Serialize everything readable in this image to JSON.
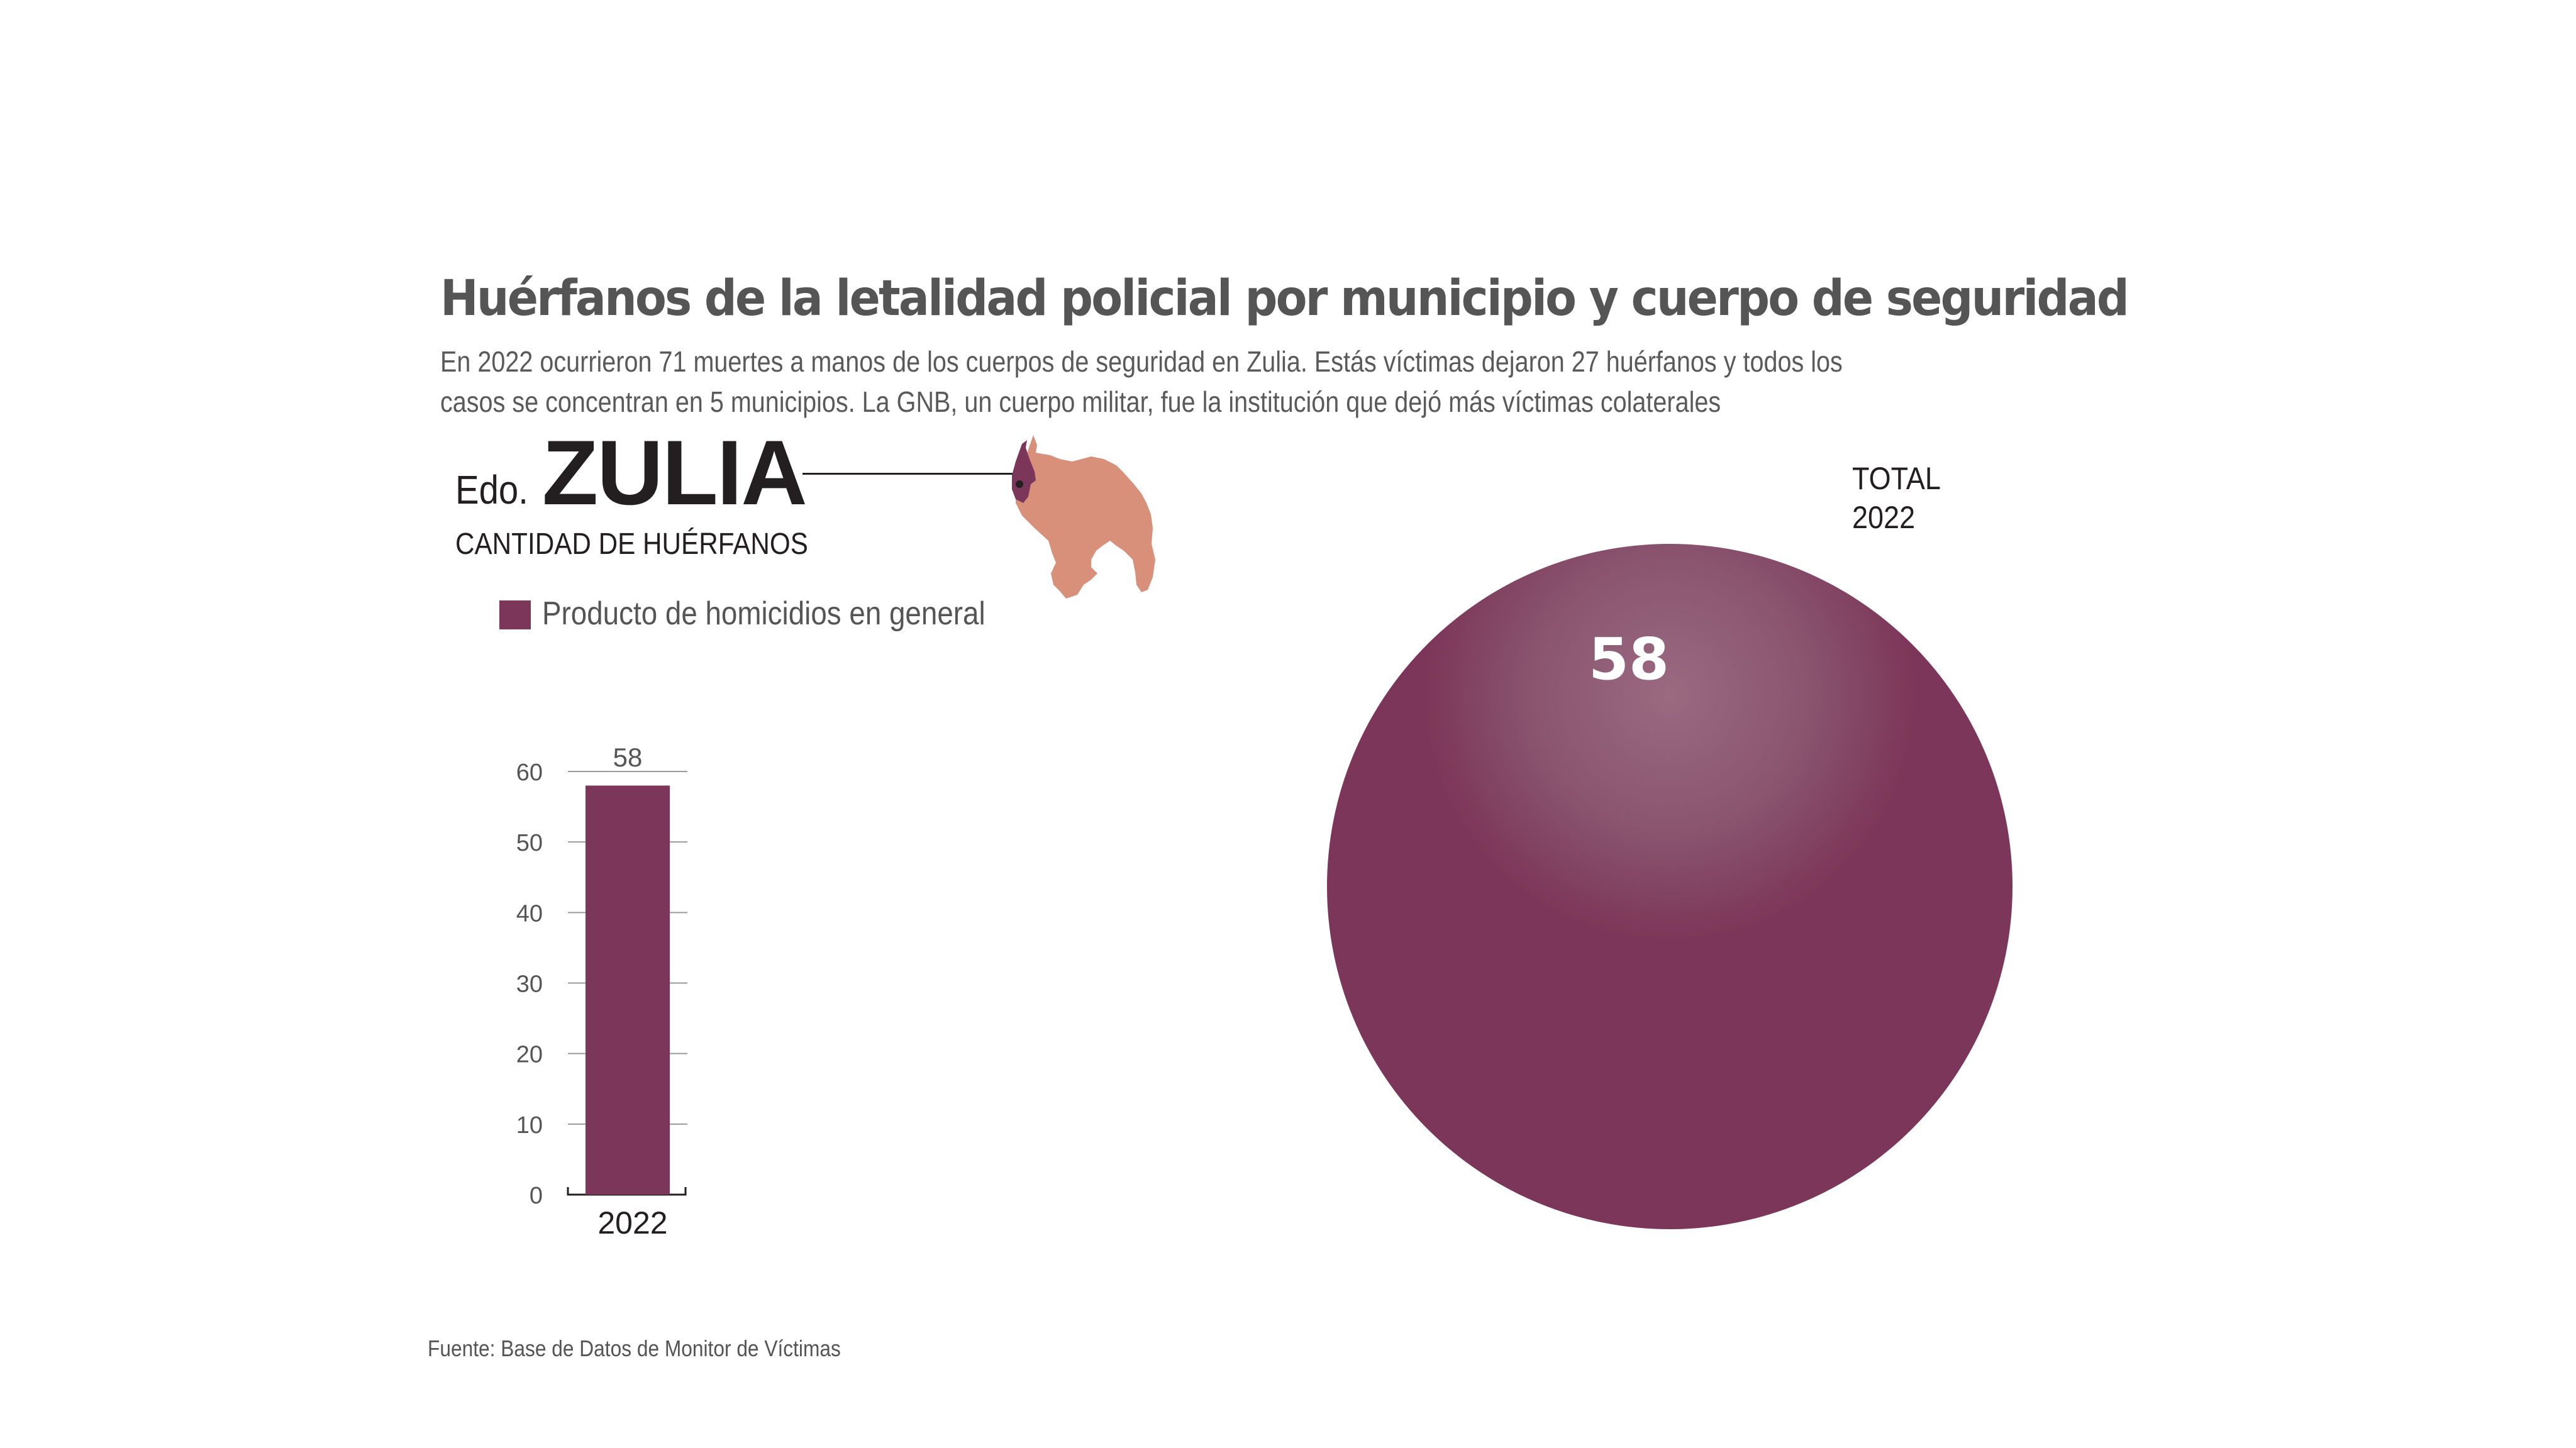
{
  "header": {
    "title": "Huérfanos de la letalidad policial por municipio y cuerpo de seguridad",
    "subtitle_lines": [
      "En 2022 ocurrieron 71 muertes a manos de los cuerpos de seguridad en Zulia. Estás víctimas dejaron 27 huérfanos y todos los",
      "casos se concentran en 5 municipios. La GNB, un cuerpo militar, fue la institución que dejó más víctimas colaterales"
    ]
  },
  "state": {
    "prefix": "Edo.",
    "name": "ZULIA",
    "measure": "CANTIDAD DE HUÉRFANOS"
  },
  "map": {
    "country_color": "#d9907a",
    "highlight_color": "#7c3659",
    "highlight_region": "Zulia"
  },
  "legend": {
    "items": [
      {
        "label": "Producto de homicidios en general",
        "color": "#7c3659"
      }
    ]
  },
  "total": {
    "line1": "TOTAL",
    "line2": "2022"
  },
  "colors": {
    "accent": "#7c3659",
    "text_dark": "#231f20",
    "text_gray": "#555555"
  },
  "footer": {
    "source": "Fuente: Base de Datos de Monitor de Víctimas"
  },
  "chart_data": [
    {
      "type": "bar",
      "title": "",
      "xlabel": "",
      "ylabel": "",
      "categories": [
        "2022"
      ],
      "series": [
        {
          "name": "Producto de homicidios en general",
          "values": [
            58
          ],
          "color": "#7c3659"
        }
      ],
      "data_labels": [
        "58"
      ],
      "ylim": [
        0,
        60
      ],
      "yticks": [
        0,
        10,
        20,
        30,
        40,
        50,
        60
      ],
      "grid": true,
      "legend": "top-left"
    },
    {
      "type": "bubble",
      "title": "TOTAL 2022",
      "values": [
        58
      ],
      "labels": [
        "58"
      ],
      "color": "#7c3659"
    }
  ]
}
